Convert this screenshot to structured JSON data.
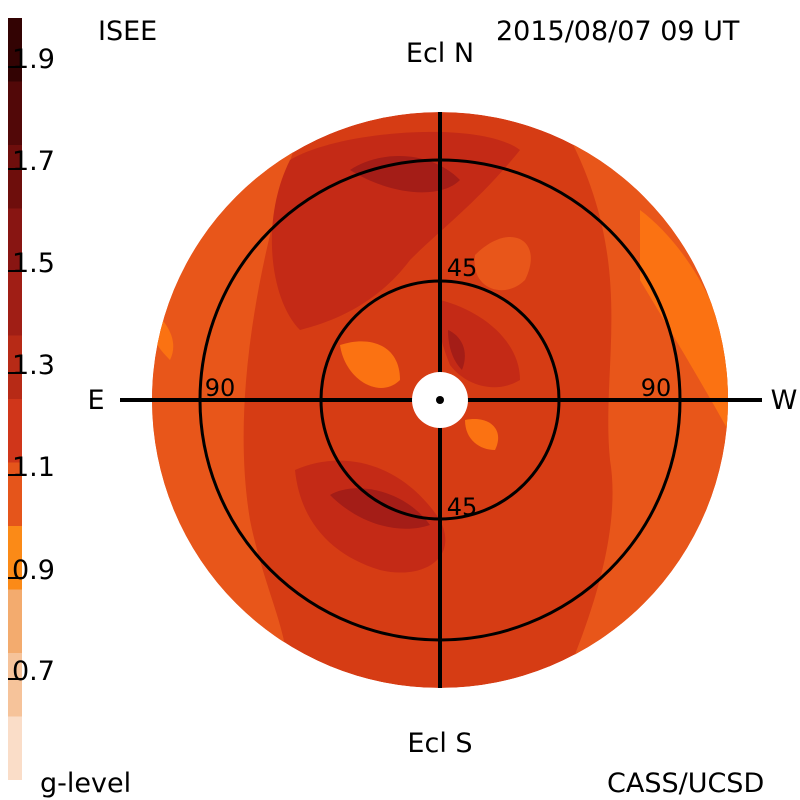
{
  "header": {
    "observatory": "ISEE",
    "timestamp": "2015/08/07 09 UT"
  },
  "footer": {
    "colorbar_label": "g-level",
    "credit": "CASS/UCSD"
  },
  "colorbar": {
    "ticks": [
      "1.9",
      "1.7",
      "1.5",
      "1.3",
      "1.1",
      "0.9",
      "0.7"
    ],
    "colors": [
      "#faddc8",
      "#f6c39a",
      "#f3ab6e",
      "#fb8a17",
      "#e5551b",
      "#d0361a",
      "#b72a16",
      "#a01e15",
      "#881512",
      "#6e0e0c",
      "#520808",
      "#330303"
    ]
  },
  "map": {
    "directions": {
      "top": "Ecl N",
      "bottom": "Ecl S",
      "left": "E",
      "right": "W"
    },
    "ring_labels": {
      "inner_top": "45",
      "inner_bottom": "45",
      "outer_left": "90",
      "outer_right": "90"
    },
    "colors": {
      "base": "#d63c14",
      "low": "#e8561a",
      "very_low": "#fb7212",
      "high": "#c42a16",
      "very_high": "#a41d17",
      "line": "#000000"
    }
  }
}
